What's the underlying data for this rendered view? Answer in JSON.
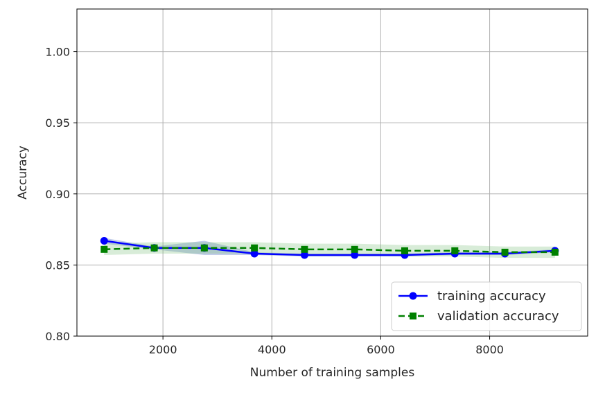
{
  "chart_data": {
    "type": "line",
    "title": "",
    "xlabel": "Number of training samples",
    "ylabel": "Accuracy",
    "xlim": [
      420,
      9800
    ],
    "ylim": [
      0.8,
      1.03
    ],
    "x_ticks": [
      2000,
      4000,
      6000,
      8000
    ],
    "y_ticks": [
      0.8,
      0.85,
      0.9,
      0.95,
      1.0
    ],
    "x_tick_labels": [
      "2000",
      "4000",
      "6000",
      "8000"
    ],
    "y_tick_labels": [
      "0.80",
      "0.85",
      "0.90",
      "0.95",
      "1.00"
    ],
    "grid": true,
    "legend_position": "lower-right",
    "x": [
      920,
      1840,
      2760,
      3680,
      4600,
      5520,
      6440,
      7360,
      8280,
      9200
    ],
    "series": [
      {
        "name": "training accuracy",
        "color": "#0000ff",
        "marker": "circle",
        "linestyle": "solid",
        "values": [
          0.867,
          0.862,
          0.862,
          0.858,
          0.857,
          0.857,
          0.857,
          0.858,
          0.858,
          0.86
        ],
        "band_lower": [
          0.865,
          0.861,
          0.857,
          0.857,
          0.856,
          0.856,
          0.856,
          0.857,
          0.857,
          0.859
        ],
        "band_upper": [
          0.869,
          0.863,
          0.867,
          0.859,
          0.858,
          0.858,
          0.858,
          0.859,
          0.859,
          0.861
        ],
        "band_color": "#4f6fbf"
      },
      {
        "name": "validation accuracy",
        "color": "#008000",
        "marker": "square",
        "linestyle": "dashed",
        "values": [
          0.861,
          0.862,
          0.862,
          0.862,
          0.861,
          0.861,
          0.86,
          0.86,
          0.859,
          0.859
        ],
        "band_lower": [
          0.857,
          0.858,
          0.858,
          0.858,
          0.857,
          0.857,
          0.856,
          0.856,
          0.855,
          0.855
        ],
        "band_upper": [
          0.865,
          0.866,
          0.866,
          0.866,
          0.865,
          0.865,
          0.864,
          0.864,
          0.863,
          0.863
        ],
        "band_color": "#7fbf7f"
      }
    ]
  }
}
